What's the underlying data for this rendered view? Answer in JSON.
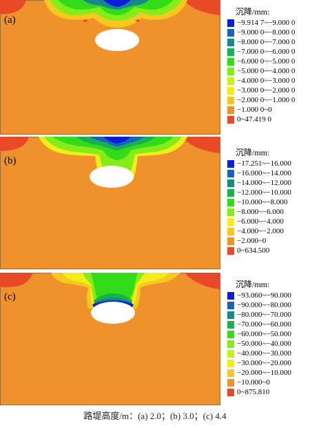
{
  "caption": "路堤高度/m：(a) 2.0；(b) 3.0；(c) 4.4",
  "panels": [
    {
      "label": "(a)",
      "legend_title": "沉降/mm:",
      "legend": [
        "−9.914 7~−9.000 0",
        "−9.000 0~−8.000 0",
        "−8.000 0~−7.000 0",
        "−7.000 0~−6.000 0",
        "−6.000 0~−5.000 0",
        "−5.000 0~−4.000 0",
        "−4.000 0~−3.000 0",
        "−3.000 0~−2.000 0",
        "−2.000 0~−1.000 0",
        "−1.000 0~0",
        "0~47.419 0"
      ]
    },
    {
      "label": "(b)",
      "legend_title": "沉降/mm:",
      "legend": [
        "−17.251~−16.000",
        "−16.000~−14.000",
        "−14.000~−12.000",
        "−12.000~−10.000",
        "−10.000~−8.000",
        "−8.000~−6.000",
        "−6.000~−4.000",
        "−4.000~−2.000",
        "−2.000~0",
        "0~634.500"
      ]
    },
    {
      "label": "(c)",
      "legend_title": "沉降/mm:",
      "legend": [
        "−93.060~−90.000",
        "−90.000~−80.000",
        "−80.000~−70.000",
        "−70.000~−60.000",
        "−60.000~−50.000",
        "−50.000~−40.000",
        "−40.000~−30.000",
        "−30.000~−20.000",
        "−20.000~−10.000",
        "−10.000~0",
        "0~875.810"
      ]
    }
  ],
  "colors": {
    "a": [
      "#0b1fd8",
      "#1663b8",
      "#168a8a",
      "#18b050",
      "#32dc18",
      "#86ec18",
      "#c8f018",
      "#f4ec18",
      "#f8c820",
      "#f0922c",
      "#e84a28"
    ],
    "b": [
      "#0b1fd8",
      "#1663b8",
      "#168a8a",
      "#18b050",
      "#32dc18",
      "#86ec18",
      "#f4ec18",
      "#f8c820",
      "#f0922c",
      "#e84a28"
    ],
    "c": [
      "#0b1fd8",
      "#1663b8",
      "#168a8a",
      "#18b050",
      "#32dc18",
      "#86ec18",
      "#c8f018",
      "#f4ec18",
      "#f8c820",
      "#f0922c",
      "#e84a28"
    ]
  }
}
